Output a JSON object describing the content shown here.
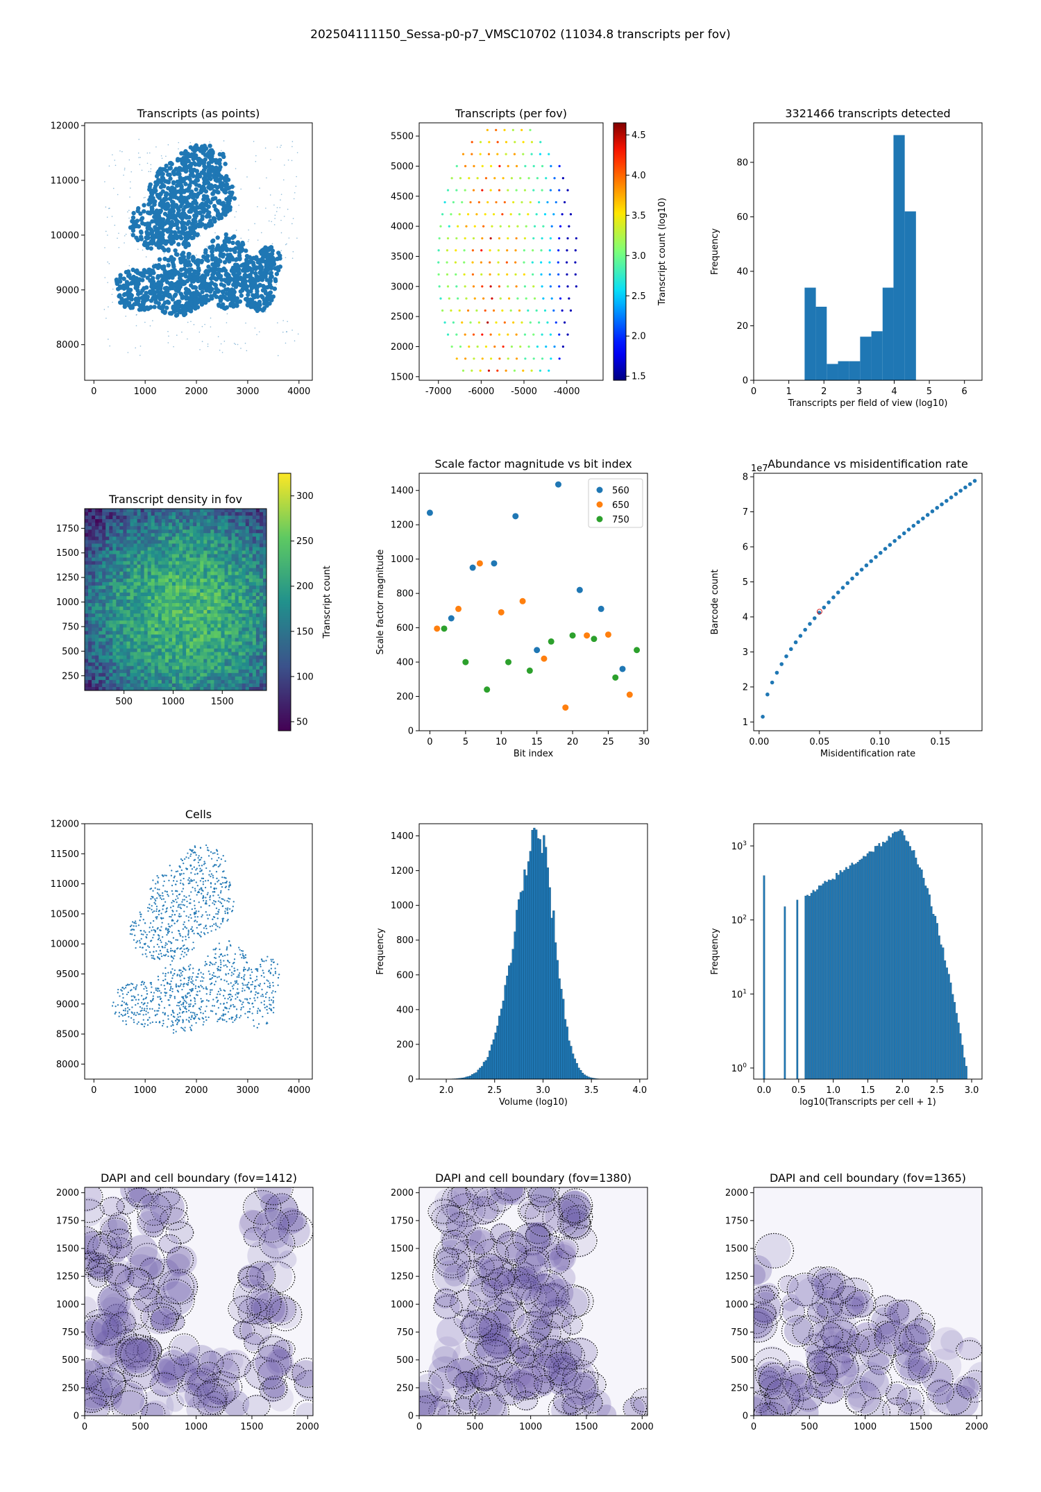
{
  "suptitle": "202504111150_Sessa-p0-p7_VMSC10702 (11034.8 transcripts per fov)",
  "chart_data": [
    {
      "id": "transcripts_points",
      "type": "scatter",
      "title": "Transcripts (as points)",
      "xlim": [
        -180,
        4260
      ],
      "ylim": [
        7350,
        12050
      ],
      "xticks": [
        0,
        1000,
        2000,
        3000,
        4000
      ],
      "yticks": [
        8000,
        9000,
        10000,
        11000,
        12000
      ],
      "color": "#1f77b4"
    },
    {
      "id": "transcripts_per_fov",
      "type": "scatter",
      "title": "Transcripts (per fov)",
      "xlim": [
        -7450,
        -3150
      ],
      "ylim": [
        1440,
        5720
      ],
      "xticks": [
        -7000,
        -6000,
        -5000,
        -4000
      ],
      "yticks": [
        1500,
        2000,
        2500,
        3000,
        3500,
        4000,
        4500,
        5000,
        5500
      ],
      "grid_spacing": 200,
      "colorbar": {
        "label": "Transcript count (log10)",
        "range": [
          1.45,
          4.65
        ],
        "ticks": [
          "1.5",
          "2.0",
          "2.5",
          "3.0",
          "3.5",
          "4.0",
          "4.5"
        ],
        "colormap": "jet"
      }
    },
    {
      "id": "hist_per_fov",
      "type": "bar",
      "title": "3321466 transcripts detected",
      "xlabel": "Transcripts per field of view (log10)",
      "ylabel": "Frequency",
      "xlim": [
        0,
        6.5
      ],
      "ylim": [
        0,
        94.5
      ],
      "xticks": [
        0,
        1,
        2,
        3,
        4,
        5,
        6
      ],
      "yticks": [
        0,
        20,
        40,
        60,
        80
      ],
      "bin_edges": [
        1.45,
        1.77,
        2.08,
        2.4,
        2.72,
        3.03,
        3.35,
        3.67,
        3.98,
        4.3,
        4.62
      ],
      "values": [
        34,
        27,
        6,
        7,
        7,
        16,
        18,
        34,
        90,
        62
      ],
      "color": "#1f77b4"
    },
    {
      "id": "density_fov",
      "type": "heatmap",
      "title": "Transcript density in fov",
      "xlim": [
        100,
        1950
      ],
      "ylim": [
        100,
        1950
      ],
      "xticks": [
        500,
        1000,
        1500
      ],
      "yticks": [
        250,
        500,
        750,
        1000,
        1250,
        1500,
        1750
      ],
      "colorbar": {
        "label": "Transcript count",
        "range": [
          40,
          325
        ],
        "ticks": [
          "50",
          "100",
          "150",
          "200",
          "250",
          "300"
        ],
        "colormap": "viridis"
      }
    },
    {
      "id": "scale_factor",
      "type": "scatter",
      "title": "Scale factor magnitude vs bit index",
      "xlabel": "Bit index",
      "ylabel": "Scale factor magnitude",
      "xlim": [
        -1.5,
        30.5
      ],
      "ylim": [
        0,
        1500
      ],
      "xticks": [
        0,
        5,
        10,
        15,
        20,
        25,
        30
      ],
      "yticks": [
        0,
        200,
        400,
        600,
        800,
        1000,
        1200,
        1400
      ],
      "legend_position": "top-right",
      "series": [
        {
          "name": "560",
          "color": "#1f77b4",
          "x": [
            0,
            3,
            6,
            9,
            12,
            15,
            18,
            21,
            24,
            27
          ],
          "y": [
            1270,
            655,
            950,
            975,
            1250,
            470,
            1435,
            820,
            710,
            360
          ]
        },
        {
          "name": "650",
          "color": "#ff7f0e",
          "x": [
            1,
            4,
            7,
            10,
            13,
            16,
            19,
            22,
            25,
            28
          ],
          "y": [
            595,
            710,
            975,
            690,
            755,
            420,
            135,
            555,
            560,
            210
          ]
        },
        {
          "name": "750",
          "color": "#2ca02c",
          "x": [
            2,
            5,
            8,
            11,
            14,
            17,
            20,
            23,
            26,
            29
          ],
          "y": [
            595,
            400,
            240,
            400,
            350,
            520,
            555,
            535,
            310,
            470
          ]
        }
      ]
    },
    {
      "id": "abundance_misid",
      "type": "scatter",
      "title": "Abundance vs misidentification rate",
      "xlabel": "Misidentification rate",
      "ylabel": "Barcode count",
      "offset_text": "1e7",
      "xlim": [
        -0.0045,
        0.1845
      ],
      "ylim": [
        0.75,
        8.1
      ],
      "xticks": [
        "0.00",
        "0.05",
        "0.10",
        "0.15"
      ],
      "xtick_values": [
        0,
        0.05,
        0.1,
        0.15
      ],
      "yticks": [
        1,
        2,
        3,
        4,
        5,
        6,
        7,
        8
      ],
      "highlight": {
        "x": 0.05,
        "y": 4.15,
        "color": "#d62728"
      },
      "color": "#1f77b4"
    },
    {
      "id": "cells",
      "type": "scatter",
      "title": "Cells",
      "xlim": [
        -180,
        4260
      ],
      "ylim": [
        7750,
        12000
      ],
      "xticks": [
        0,
        1000,
        2000,
        3000,
        4000
      ],
      "yticks": [
        8000,
        8500,
        9000,
        9500,
        10000,
        10500,
        11000,
        11500,
        12000
      ],
      "color": "#1f77b4"
    },
    {
      "id": "volume_hist",
      "type": "bar",
      "title": "",
      "xlabel": "Volume (log10)",
      "ylabel": "Frequency",
      "xlim": [
        1.72,
        4.08
      ],
      "ylim": [
        0,
        1470
      ],
      "xticks": [
        "2.0",
        "2.5",
        "3.0",
        "3.5",
        "4.0"
      ],
      "xtick_values": [
        2.0,
        2.5,
        3.0,
        3.5,
        4.0
      ],
      "yticks": [
        0,
        200,
        400,
        600,
        800,
        1000,
        1200,
        1400
      ],
      "distribution": {
        "mean": 2.95,
        "peak": 1400,
        "range": [
          1.8,
          4.0
        ]
      },
      "color": "#1f77b4"
    },
    {
      "id": "transcripts_per_cell",
      "type": "bar",
      "title": "",
      "xlabel": "log10(Transcripts per cell + 1)",
      "ylabel": "Frequency",
      "log_y": true,
      "xlim": [
        -0.15,
        3.15
      ],
      "ylim_log10": [
        -0.15,
        3.3
      ],
      "xticks": [
        "0.0",
        "0.5",
        "1.0",
        "1.5",
        "2.0",
        "2.5",
        "3.0"
      ],
      "xtick_values": [
        0,
        0.5,
        1.0,
        1.5,
        2.0,
        2.5,
        3.0
      ],
      "yticks": [
        "10^0",
        "10^1",
        "10^2",
        "10^3"
      ],
      "color": "#1f77b4"
    },
    {
      "id": "dapi_1412",
      "type": "heatmap",
      "title": "DAPI and cell boundary (fov=1412)",
      "xlim": [
        0,
        2048
      ],
      "ylim": [
        0,
        2048
      ],
      "xticks": [
        0,
        500,
        1000,
        1500,
        2000
      ],
      "yticks": [
        0,
        250,
        500,
        750,
        1000,
        1250,
        1500,
        1750,
        2000
      ]
    },
    {
      "id": "dapi_1380",
      "type": "heatmap",
      "title": "DAPI and cell boundary (fov=1380)",
      "xlim": [
        0,
        2048
      ],
      "ylim": [
        0,
        2048
      ],
      "xticks": [
        0,
        500,
        1000,
        1500,
        2000
      ],
      "yticks": [
        0,
        250,
        500,
        750,
        1000,
        1250,
        1500,
        1750,
        2000
      ]
    },
    {
      "id": "dapi_1365",
      "type": "heatmap",
      "title": "DAPI and cell boundary (fov=1365)",
      "xlim": [
        0,
        2048
      ],
      "ylim": [
        0,
        2048
      ],
      "xticks": [
        0,
        500,
        1000,
        1500,
        2000
      ],
      "yticks": [
        0,
        250,
        500,
        750,
        1000,
        1250,
        1500,
        1750,
        2000
      ]
    }
  ]
}
